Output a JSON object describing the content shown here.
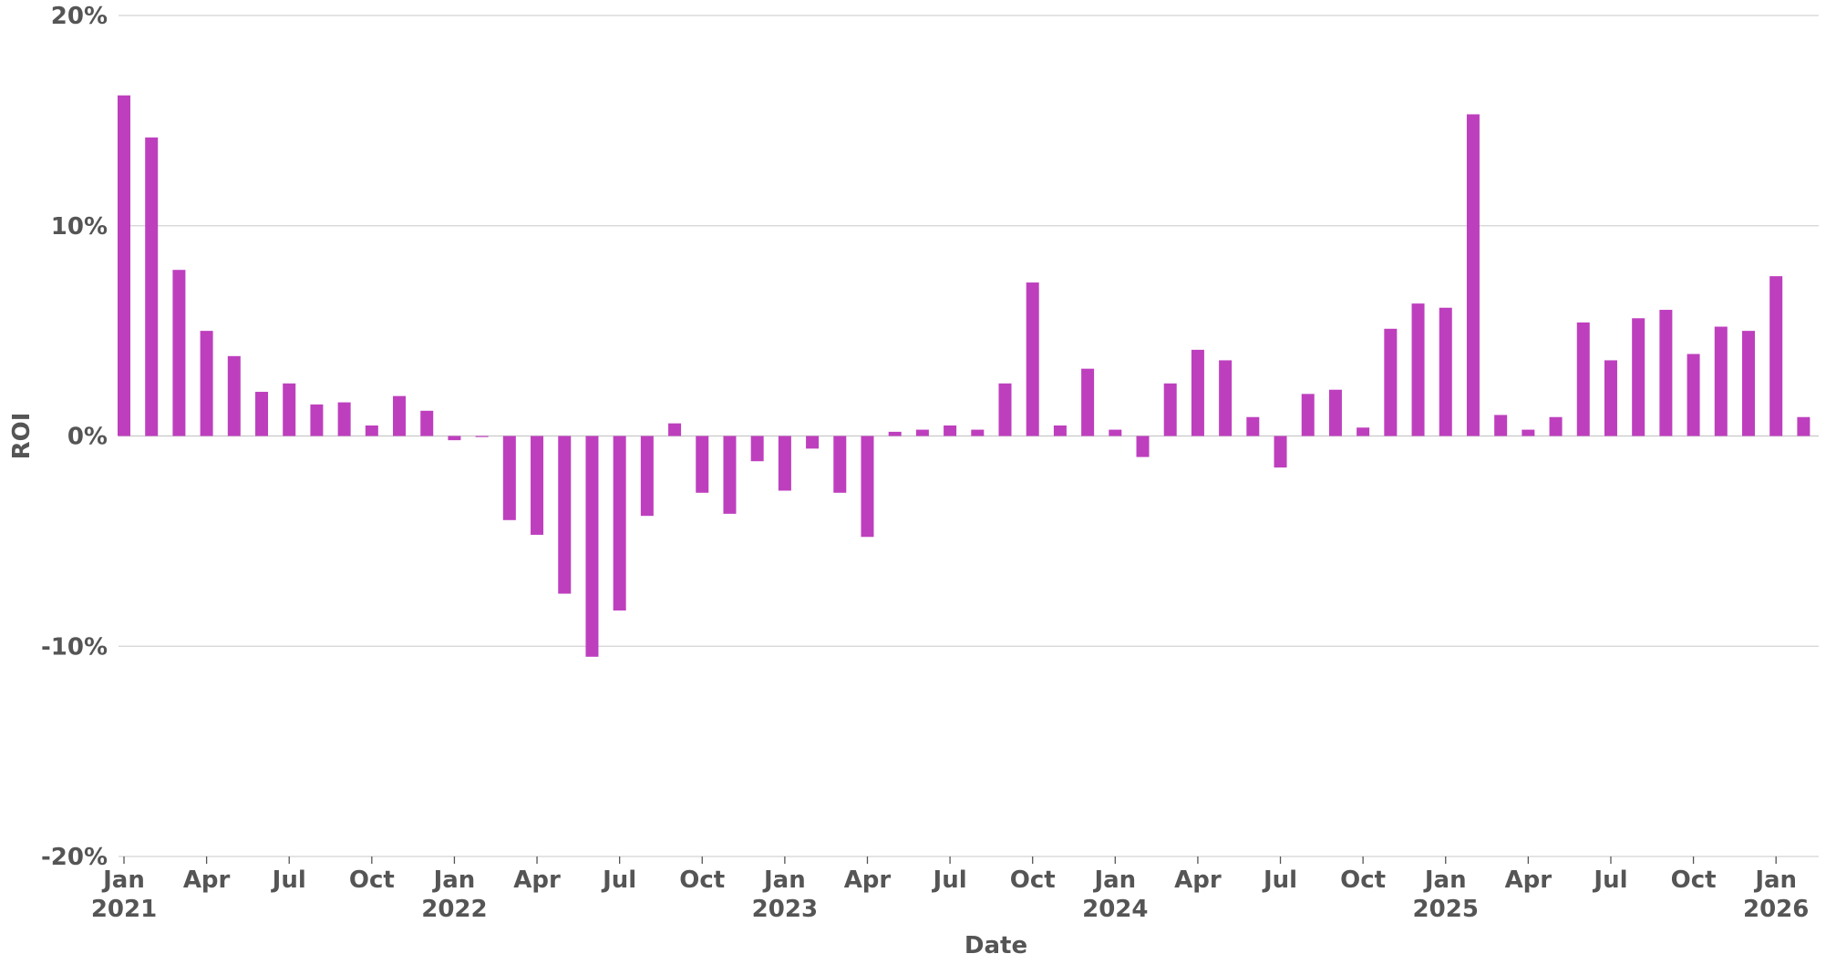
{
  "chart_data": {
    "type": "bar",
    "title": "",
    "xlabel": "Date",
    "ylabel": "ROI",
    "ylim": [
      -20,
      20
    ],
    "y_ticks": [
      20,
      10,
      0,
      -10,
      -20
    ],
    "y_tick_labels": [
      "20%",
      "10%",
      "0%",
      "-10%",
      "-20%"
    ],
    "x_ticks": [
      {
        "date": "2021-01",
        "label": "Jan",
        "year": "2021"
      },
      {
        "date": "2021-04",
        "label": "Apr",
        "year": ""
      },
      {
        "date": "2021-07",
        "label": "Jul",
        "year": ""
      },
      {
        "date": "2021-10",
        "label": "Oct",
        "year": ""
      },
      {
        "date": "2022-01",
        "label": "Jan",
        "year": "2022"
      },
      {
        "date": "2022-04",
        "label": "Apr",
        "year": ""
      },
      {
        "date": "2022-07",
        "label": "Jul",
        "year": ""
      },
      {
        "date": "2022-10",
        "label": "Oct",
        "year": ""
      },
      {
        "date": "2023-01",
        "label": "Jan",
        "year": "2023"
      },
      {
        "date": "2023-04",
        "label": "Apr",
        "year": ""
      },
      {
        "date": "2023-07",
        "label": "Jul",
        "year": ""
      },
      {
        "date": "2023-10",
        "label": "Oct",
        "year": ""
      },
      {
        "date": "2024-01",
        "label": "Jan",
        "year": "2024"
      },
      {
        "date": "2024-04",
        "label": "Apr",
        "year": ""
      },
      {
        "date": "2024-07",
        "label": "Jul",
        "year": ""
      },
      {
        "date": "2024-10",
        "label": "Oct",
        "year": ""
      },
      {
        "date": "2025-01",
        "label": "Jan",
        "year": "2025"
      },
      {
        "date": "2025-04",
        "label": "Apr",
        "year": ""
      },
      {
        "date": "2025-07",
        "label": "Jul",
        "year": ""
      },
      {
        "date": "2025-10",
        "label": "Oct",
        "year": ""
      },
      {
        "date": "2026-01",
        "label": "Jan",
        "year": "2026"
      }
    ],
    "x_range": [
      "2021-01",
      "2026-02"
    ],
    "grid": true,
    "legend": "none",
    "bar_color": "#be3fbe",
    "grid_color": "#d3d3d3",
    "categories": [
      "2021-01",
      "2021-02",
      "2021-03",
      "2021-04",
      "2021-05",
      "2021-06",
      "2021-07",
      "2021-08",
      "2021-09",
      "2021-10",
      "2021-11",
      "2021-12",
      "2022-01",
      "2022-02",
      "2022-03",
      "2022-04",
      "2022-05",
      "2022-06",
      "2022-07",
      "2022-08",
      "2022-09",
      "2022-10",
      "2022-11",
      "2022-12",
      "2023-01",
      "2023-02",
      "2023-03",
      "2023-04",
      "2023-05",
      "2023-06",
      "2023-07",
      "2023-08",
      "2023-09",
      "2023-10",
      "2023-11",
      "2023-12",
      "2024-01",
      "2024-02",
      "2024-03",
      "2024-04",
      "2024-05",
      "2024-06",
      "2024-07",
      "2024-08",
      "2024-09",
      "2024-10",
      "2024-11",
      "2024-12",
      "2025-01",
      "2025-02",
      "2025-03",
      "2025-04",
      "2025-05",
      "2025-06",
      "2025-07",
      "2025-08",
      "2025-09",
      "2025-10",
      "2025-11",
      "2025-12",
      "2026-01",
      "2026-02"
    ],
    "values": [
      16.2,
      14.2,
      7.9,
      5.0,
      3.8,
      2.1,
      2.5,
      1.5,
      1.6,
      0.5,
      1.9,
      1.2,
      -0.2,
      -0.05,
      -4.0,
      -4.7,
      -7.5,
      -10.5,
      -8.3,
      -3.8,
      0.6,
      -2.7,
      -3.7,
      -1.2,
      -2.6,
      -0.6,
      -2.7,
      -4.8,
      0.2,
      0.3,
      0.5,
      0.3,
      2.5,
      7.3,
      0.5,
      3.2,
      0.3,
      -1.0,
      2.5,
      4.1,
      3.6,
      0.9,
      -1.5,
      2.0,
      2.2,
      0.4,
      5.1,
      6.3,
      6.1,
      15.3,
      1.0,
      0.3,
      0.9,
      5.4,
      3.6,
      5.6,
      6.0,
      3.9,
      5.2,
      5.0,
      7.6,
      0.9
    ]
  }
}
